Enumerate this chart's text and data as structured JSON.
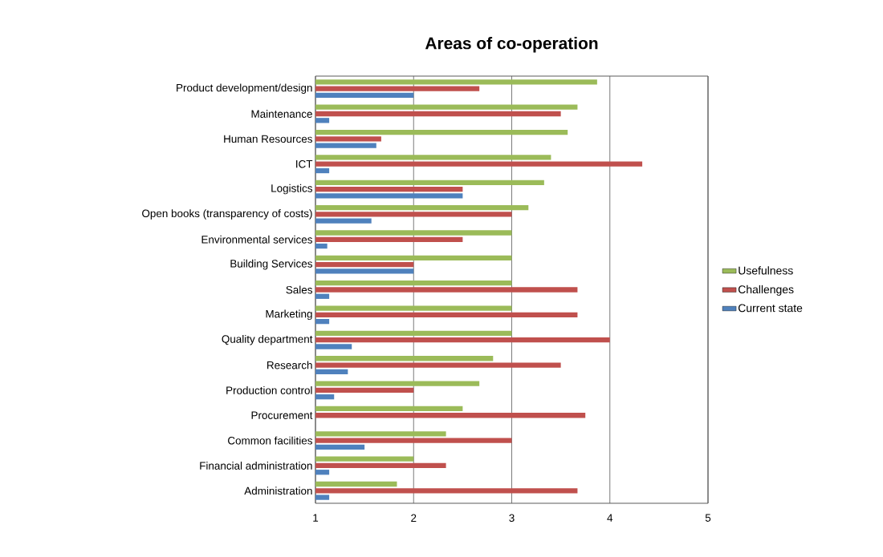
{
  "chart_data": {
    "type": "bar",
    "orientation": "horizontal",
    "title": "Areas of co-operation",
    "categories": [
      "Product development/design",
      "Maintenance",
      "Human Resources",
      "ICT",
      "Logistics",
      "Open books (transparency of costs)",
      "Environmental services",
      "Building Services",
      "Sales",
      "Marketing",
      "Quality department",
      "Research",
      "Production control",
      "Procurement",
      "Common facilities",
      "Financial administration",
      "Administration"
    ],
    "series": [
      {
        "name": "Current state",
        "color": "#4f81bd",
        "values": [
          2.0,
          1.14,
          1.62,
          1.14,
          2.5,
          1.57,
          1.12,
          2.0,
          1.14,
          1.14,
          1.37,
          1.33,
          1.19,
          null,
          1.5,
          1.14,
          1.14
        ]
      },
      {
        "name": "Challenges",
        "color": "#c0504d",
        "values": [
          2.67,
          3.5,
          1.67,
          4.33,
          2.5,
          3.0,
          2.5,
          2.0,
          3.67,
          3.67,
          4.0,
          3.5,
          2.0,
          3.75,
          3.0,
          2.33,
          3.67
        ]
      },
      {
        "name": "Usefulness",
        "color": "#9bbb59",
        "values": [
          3.87,
          3.67,
          3.57,
          3.4,
          3.33,
          3.17,
          3.0,
          3.0,
          3.0,
          3.0,
          3.0,
          2.81,
          2.67,
          2.5,
          2.33,
          2.0,
          1.83
        ]
      }
    ],
    "xlim": [
      1,
      5
    ],
    "xticks": [
      1,
      2,
      3,
      4,
      5
    ],
    "grid": "x",
    "legend": "right"
  }
}
